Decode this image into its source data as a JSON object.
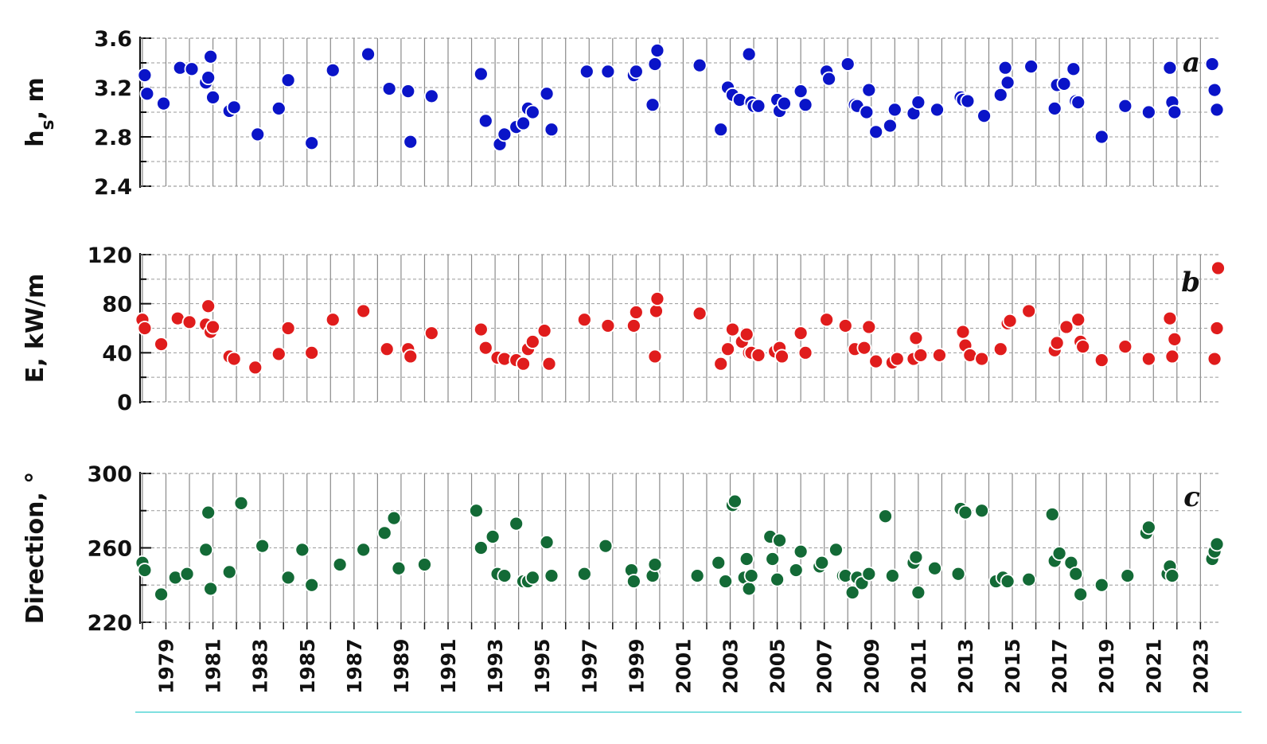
{
  "chart_data": [
    {
      "type": "scatter",
      "panel_label": "a",
      "ylabel_main": "h",
      "ylabel_sub": "s",
      "ylabel_unit": ", m",
      "ylim": [
        2.4,
        3.6
      ],
      "yticks": [
        "2.4",
        "2.8",
        "3.2",
        "3.6"
      ],
      "grid": "horizontal-dashed, vertical-solid",
      "color": "#0a14c8",
      "x": [
        1978.1,
        1978.2,
        1978.9,
        1979.6,
        1980.1,
        1980.7,
        1980.8,
        1980.9,
        1981.0,
        1981.7,
        1981.9,
        1982.9,
        1983.8,
        1984.2,
        1985.2,
        1986.1,
        1987.6,
        1988.5,
        1989.3,
        1989.4,
        1990.3,
        1992.4,
        1992.6,
        1993.2,
        1993.4,
        1993.9,
        1994.2,
        1994.4,
        1994.6,
        1995.2,
        1995.4,
        1996.9,
        1997.8,
        1998.9,
        1999.0,
        1999.7,
        1999.8,
        1999.9,
        2001.7,
        2002.6,
        2002.9,
        2003.1,
        2003.4,
        2003.8,
        2003.9,
        2004.0,
        2004.2,
        2005.0,
        2005.1,
        2005.3,
        2006.0,
        2006.2,
        2007.1,
        2007.2,
        2008.0,
        2008.3,
        2008.4,
        2008.8,
        2008.9,
        2009.2,
        2009.8,
        2010.0,
        2010.8,
        2011.0,
        2011.8,
        2012.8,
        2012.9,
        2013.1,
        2013.8,
        2014.5,
        2014.7,
        2014.8,
        2015.8,
        2016.8,
        2016.9,
        2017.2,
        2017.6,
        2017.7,
        2017.8,
        2018.8,
        2019.8,
        2020.8,
        2021.7,
        2021.8,
        2021.9,
        2023.5,
        2023.6,
        2023.7
      ],
      "values": [
        3.3,
        3.15,
        3.07,
        3.36,
        3.35,
        3.24,
        3.28,
        3.45,
        3.12,
        3.01,
        3.04,
        2.82,
        3.03,
        3.26,
        2.75,
        3.34,
        3.47,
        3.19,
        3.17,
        2.76,
        3.13,
        3.31,
        2.93,
        2.74,
        2.82,
        2.88,
        2.91,
        3.03,
        3.0,
        3.15,
        2.86,
        3.33,
        3.33,
        3.3,
        3.33,
        3.06,
        3.39,
        3.5,
        3.38,
        2.86,
        3.2,
        3.14,
        3.1,
        3.47,
        3.08,
        3.05,
        3.05,
        3.1,
        3.01,
        3.07,
        3.17,
        3.06,
        3.33,
        3.27,
        3.39,
        3.06,
        3.05,
        3.0,
        3.18,
        2.84,
        2.89,
        3.02,
        2.99,
        3.08,
        3.02,
        3.12,
        3.1,
        3.09,
        2.97,
        3.14,
        3.36,
        3.24,
        3.37,
        3.03,
        3.22,
        3.23,
        3.35,
        3.09,
        3.08,
        2.8,
        3.05,
        3.0,
        3.36,
        3.08,
        3.0,
        3.39,
        3.18,
        3.02
      ]
    },
    {
      "type": "scatter",
      "panel_label": "b",
      "ylabel": "E, kW/m",
      "ylim": [
        0,
        120
      ],
      "yticks": [
        "0",
        "40",
        "80",
        "120"
      ],
      "grid": "horizontal-dashed, vertical-solid",
      "color": "#e01c1c",
      "x": [
        1978.0,
        1978.1,
        1978.8,
        1979.5,
        1980.0,
        1980.7,
        1980.8,
        1980.9,
        1981.0,
        1981.7,
        1981.9,
        1982.8,
        1983.8,
        1984.2,
        1985.2,
        1986.1,
        1987.4,
        1988.4,
        1989.3,
        1989.4,
        1990.3,
        1992.4,
        1992.6,
        1993.1,
        1993.4,
        1993.9,
        1994.2,
        1994.4,
        1994.6,
        1995.1,
        1995.3,
        1996.8,
        1997.8,
        1998.9,
        1999.0,
        1999.8,
        1999.85,
        1999.9,
        2001.7,
        2002.6,
        2002.9,
        2003.1,
        2003.5,
        2003.7,
        2003.8,
        2003.9,
        2004.2,
        2004.9,
        2005.1,
        2005.2,
        2006.0,
        2006.2,
        2007.1,
        2007.9,
        2008.3,
        2008.7,
        2008.9,
        2009.2,
        2009.9,
        2010.1,
        2010.8,
        2010.9,
        2011.1,
        2011.9,
        2012.9,
        2013.0,
        2013.2,
        2013.7,
        2014.5,
        2014.8,
        2014.9,
        2015.7,
        2016.8,
        2016.9,
        2017.3,
        2017.8,
        2017.9,
        2018.0,
        2018.8,
        2019.8,
        2020.8,
        2021.7,
        2021.8,
        2021.9,
        2023.6,
        2023.7,
        2023.75
      ],
      "values": [
        67,
        60,
        47,
        68,
        65,
        63,
        78,
        57,
        61,
        37,
        35,
        28,
        39,
        60,
        40,
        67,
        74,
        43,
        43,
        37,
        56,
        59,
        44,
        36,
        35,
        34,
        31,
        43,
        49,
        58,
        31,
        67,
        62,
        62,
        73,
        37,
        74,
        84,
        72,
        31,
        43,
        59,
        49,
        55,
        40,
        40,
        38,
        41,
        44,
        37,
        56,
        40,
        67,
        62,
        43,
        44,
        61,
        33,
        32,
        35,
        35,
        52,
        38,
        38,
        57,
        46,
        38,
        35,
        43,
        64,
        66,
        74,
        42,
        48,
        61,
        67,
        49,
        45,
        34,
        45,
        35,
        68,
        37,
        51,
        35,
        60,
        109
      ]
    },
    {
      "type": "scatter",
      "panel_label": "c",
      "ylabel": "Direction, °",
      "ylim": [
        220,
        300
      ],
      "yticks": [
        "220",
        "260",
        "300"
      ],
      "grid": "horizontal-dashed, vertical-solid",
      "color": "#136a36",
      "x": [
        1978.0,
        1978.1,
        1978.8,
        1979.4,
        1979.9,
        1980.7,
        1980.8,
        1980.9,
        1981.7,
        1982.2,
        1983.1,
        1984.2,
        1984.8,
        1985.2,
        1986.4,
        1987.4,
        1988.3,
        1988.7,
        1988.9,
        1990.0,
        1992.2,
        1992.4,
        1992.9,
        1993.1,
        1993.4,
        1993.9,
        1994.2,
        1994.4,
        1994.6,
        1995.2,
        1995.4,
        1996.8,
        1997.7,
        1998.8,
        1998.9,
        1999.7,
        1999.8,
        2001.6,
        2002.5,
        2002.8,
        2003.1,
        2003.2,
        2003.6,
        2003.7,
        2003.8,
        2003.9,
        2004.7,
        2004.8,
        2005.0,
        2005.1,
        2005.8,
        2006.0,
        2006.8,
        2006.9,
        2007.5,
        2007.8,
        2007.9,
        2008.2,
        2008.4,
        2008.6,
        2008.9,
        2009.6,
        2009.9,
        2010.8,
        2010.9,
        2011.0,
        2011.7,
        2012.7,
        2012.8,
        2013.0,
        2013.7,
        2014.3,
        2014.6,
        2014.8,
        2015.7,
        2016.7,
        2016.8,
        2017.0,
        2017.5,
        2017.7,
        2017.9,
        2018.8,
        2019.9,
        2020.7,
        2020.8,
        2021.6,
        2021.7,
        2021.8,
        2023.5,
        2023.6,
        2023.7
      ],
      "values": [
        252,
        248,
        235,
        244,
        246,
        259,
        279,
        238,
        247,
        284,
        261,
        244,
        259,
        240,
        251,
        259,
        268,
        276,
        249,
        251,
        280,
        260,
        266,
        246,
        245,
        273,
        242,
        242,
        244,
        263,
        245,
        246,
        261,
        248,
        242,
        245,
        251,
        245,
        252,
        242,
        283,
        285,
        244,
        254,
        238,
        245,
        266,
        254,
        243,
        264,
        248,
        258,
        250,
        252,
        259,
        245,
        245,
        236,
        244,
        241,
        246,
        277,
        245,
        252,
        255,
        236,
        249,
        246,
        281,
        279,
        280,
        242,
        244,
        242,
        243,
        278,
        253,
        257,
        252,
        246,
        235,
        240,
        245,
        268,
        271,
        246,
        250,
        245,
        254,
        258,
        262
      ]
    }
  ],
  "x_axis": {
    "xlim": [
      1977.9,
      2023.8
    ],
    "tick_labels": [
      "1979",
      "1981",
      "1983",
      "1985",
      "1987",
      "1989",
      "1991",
      "1993",
      "1995",
      "1997",
      "1999",
      "2001",
      "2003",
      "2005",
      "2007",
      "2009",
      "2011",
      "2013",
      "2015",
      "2017",
      "2019",
      "2021",
      "2023"
    ],
    "tick_values": [
      1979,
      1981,
      1983,
      1985,
      1987,
      1989,
      1991,
      1993,
      1995,
      1997,
      1999,
      2001,
      2003,
      2005,
      2007,
      2009,
      2011,
      2013,
      2015,
      2017,
      2019,
      2021,
      2023
    ]
  }
}
